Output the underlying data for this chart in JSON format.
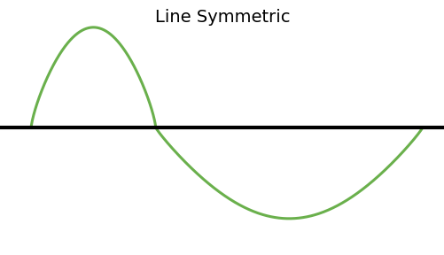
{
  "title": "Line Symmetric",
  "title_fontsize": 14,
  "title_color": "#000000",
  "background_color": "#ffffff",
  "line_color": "#6ab04c",
  "equator_color": "#000000",
  "equator_linewidth": 3.0,
  "curve_linewidth": 2.2,
  "figsize": [
    5.02,
    2.88
  ],
  "dpi": 100,
  "xlim": [
    0,
    10
  ],
  "ylim": [
    -2.8,
    2.8
  ],
  "x1_start": 0.7,
  "x1_peak": 1.7,
  "x1_end": 3.5,
  "y1_peak": 2.2,
  "x2_end": 9.5,
  "y2_trough": -2.0
}
